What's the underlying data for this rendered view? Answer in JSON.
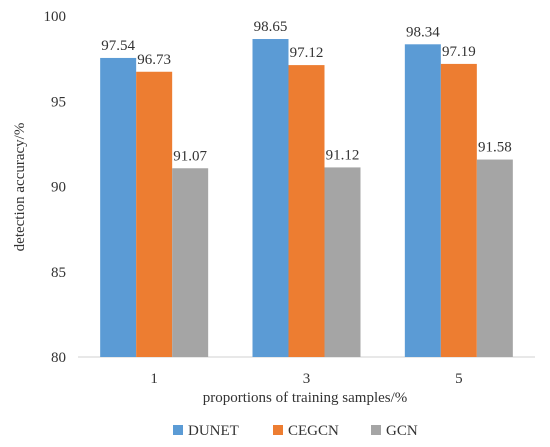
{
  "chart_data": {
    "type": "bar",
    "title": "",
    "xlabel": "proportions of training samples/%",
    "ylabel": "detection accuracy/%",
    "categories": [
      "1",
      "3",
      "5"
    ],
    "series": [
      {
        "name": "DUNET",
        "values": [
          97.54,
          98.65,
          98.34
        ],
        "color": "#5b9bd5"
      },
      {
        "name": "CEGCN",
        "values": [
          96.73,
          97.12,
          97.19
        ],
        "color": "#ed7d31"
      },
      {
        "name": "GCN",
        "values": [
          91.07,
          91.12,
          91.58
        ],
        "color": "#a5a5a5"
      }
    ],
    "ylim": [
      80,
      100
    ],
    "yticks": [
      80,
      85,
      90,
      95,
      100
    ],
    "grid": false,
    "legend_position": "bottom"
  }
}
